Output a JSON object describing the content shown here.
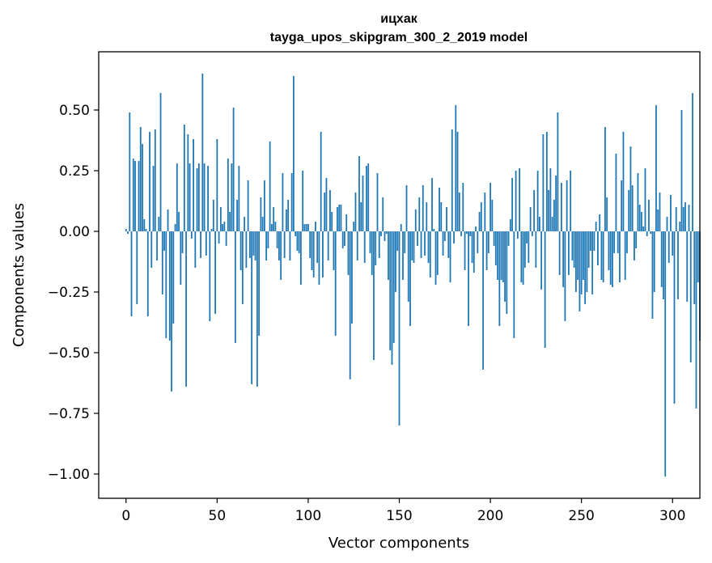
{
  "chart_data": {
    "type": "bar",
    "title_line1": "ицхак",
    "title_line2": "tayga_upos_skipgram_300_2_2019 model",
    "xlabel": "Vector components",
    "ylabel": "Components values",
    "xlim": [
      -15,
      315
    ],
    "ylim": [
      -1.1,
      0.74
    ],
    "xticks": [
      0,
      50,
      100,
      150,
      200,
      250,
      300
    ],
    "yticks": [
      0.5,
      0.25,
      0.0,
      -0.25,
      -0.5,
      -0.75,
      -1.0
    ],
    "ytick_labels": [
      "0.50",
      "0.25",
      "0.00",
      "−0.25",
      "−0.50",
      "−0.75",
      "−1.00"
    ],
    "bar_color": "#1f77b4",
    "grid": false,
    "values": [
      0.01,
      -0.01,
      0.49,
      -0.35,
      0.3,
      0.29,
      -0.3,
      0.29,
      0.43,
      0.36,
      0.05,
      0.01,
      -0.35,
      0.41,
      -0.15,
      0.27,
      0.42,
      -0.12,
      0.06,
      0.57,
      -0.26,
      -0.08,
      -0.44,
      0.09,
      -0.45,
      -0.66,
      -0.38,
      0.03,
      0.28,
      0.08,
      -0.22,
      -0.09,
      0.44,
      -0.64,
      0.4,
      0.28,
      -0.03,
      0.38,
      -0.15,
      0.26,
      0.28,
      -0.11,
      0.65,
      0.28,
      -0.1,
      0.27,
      -0.37,
      0.01,
      0.13,
      -0.34,
      0.38,
      -0.05,
      0.1,
      0.03,
      0.04,
      -0.06,
      0.3,
      0.08,
      0.28,
      0.51,
      -0.46,
      0.13,
      0.27,
      -0.16,
      -0.3,
      0.06,
      -0.15,
      0.21,
      -0.11,
      -0.63,
      -0.1,
      -0.12,
      -0.64,
      -0.43,
      0.14,
      0.06,
      0.21,
      -0.12,
      -0.07,
      0.37,
      0.03,
      0.1,
      0.04,
      -0.07,
      -0.12,
      -0.2,
      0.24,
      -0.11,
      0.09,
      0.13,
      -0.12,
      0.24,
      0.64,
      -0.02,
      -0.08,
      -0.09,
      -0.22,
      0.25,
      0.03,
      0.03,
      0.03,
      -0.11,
      -0.16,
      -0.19,
      0.04,
      -0.13,
      -0.22,
      0.41,
      -0.19,
      0.16,
      0.22,
      -0.12,
      0.17,
      0.08,
      -0.16,
      -0.43,
      0.1,
      0.11,
      0.11,
      -0.07,
      -0.06,
      0.07,
      -0.18,
      -0.61,
      -0.38,
      0.04,
      0.16,
      -0.12,
      0.31,
      0.12,
      0.23,
      -0.13,
      0.27,
      0.28,
      -0.09,
      -0.18,
      -0.53,
      -0.14,
      0.24,
      -0.11,
      -0.02,
      0.14,
      -0.04,
      -0.01,
      -0.2,
      -0.49,
      -0.55,
      -0.46,
      -0.25,
      -0.08,
      -0.8,
      0.03,
      -0.2,
      -0.09,
      0.19,
      -0.29,
      -0.39,
      -0.12,
      -0.13,
      0.09,
      -0.06,
      0.14,
      -0.11,
      0.19,
      -0.1,
      0.12,
      -0.13,
      -0.19,
      0.22,
      0.01,
      -0.22,
      -0.18,
      0.18,
      0.12,
      -0.1,
      -0.04,
      0.1,
      -0.11,
      -0.21,
      0.42,
      -0.05,
      0.52,
      0.41,
      0.16,
      -0.02,
      0.2,
      -0.16,
      -0.01,
      -0.39,
      -0.02,
      -0.13,
      -0.17,
      0.02,
      -0.09,
      0.08,
      0.12,
      -0.57,
      0.16,
      -0.16,
      -0.09,
      0.2,
      0.13,
      -0.06,
      -0.14,
      -0.2,
      -0.39,
      -0.2,
      -0.21,
      -0.29,
      -0.34,
      -0.06,
      0.05,
      0.22,
      -0.44,
      0.25,
      -0.03,
      0.26,
      -0.21,
      -0.22,
      -0.15,
      -0.05,
      -0.13,
      0.1,
      -0.02,
      0.17,
      -0.15,
      0.25,
      0.06,
      -0.24,
      0.4,
      -0.48,
      0.41,
      0.17,
      0.26,
      0.06,
      0.13,
      0.23,
      0.49,
      -0.18,
      0.2,
      -0.23,
      -0.37,
      0.21,
      -0.18,
      0.25,
      -0.12,
      -0.15,
      -0.25,
      -0.2,
      -0.33,
      -0.26,
      -0.2,
      -0.3,
      -0.25,
      -0.15,
      -0.08,
      -0.26,
      -0.08,
      0.04,
      -0.14,
      0.07,
      -0.2,
      -0.21,
      0.43,
      0.14,
      -0.16,
      -0.22,
      -0.23,
      -0.09,
      0.32,
      -0.09,
      -0.21,
      0.21,
      0.41,
      -0.2,
      -0.09,
      0.17,
      0.35,
      0.19,
      -0.12,
      -0.07,
      0.24,
      0.11,
      0.08,
      0.02,
      0.26,
      -0.02,
      0.13,
      -0.01,
      -0.36,
      -0.25,
      0.52,
      0.09,
      0.16,
      -0.23,
      -0.28,
      -1.01,
      0.06,
      -0.13,
      0.15,
      -0.1,
      -0.71,
      0.1,
      -0.28,
      0.04,
      0.5,
      0.1,
      0.12,
      -0.29,
      0.11,
      -0.54,
      0.57,
      -0.3,
      -0.73,
      -0.21,
      -0.45
    ]
  }
}
